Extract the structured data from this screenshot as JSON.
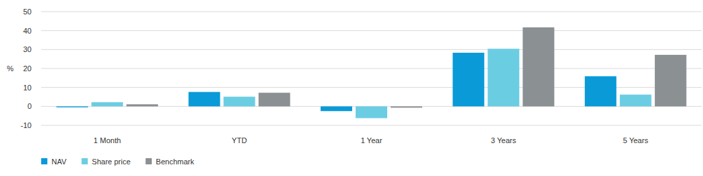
{
  "chart_data": {
    "type": "bar",
    "y_label": "%",
    "categories": [
      "1 Month",
      "YTD",
      "1 Year",
      "3 Years",
      "5 Years"
    ],
    "series": [
      {
        "name": "NAV",
        "color": "#0a9ad7",
        "values": [
          -0.5,
          7.6,
          -2.5,
          28.3,
          15.9
        ]
      },
      {
        "name": "Share price",
        "color": "#6bcde2",
        "values": [
          2.2,
          5.1,
          -6.2,
          30.4,
          6.2
        ]
      },
      {
        "name": "Benchmark",
        "color": "#8b9093",
        "values": [
          1.1,
          7.2,
          -0.7,
          41.7,
          27.2
        ]
      }
    ],
    "ylim": [
      -10,
      50
    ],
    "yticks": [
      -10,
      0,
      10,
      20,
      30,
      40,
      50
    ],
    "grid": true,
    "legend": "bottom"
  }
}
